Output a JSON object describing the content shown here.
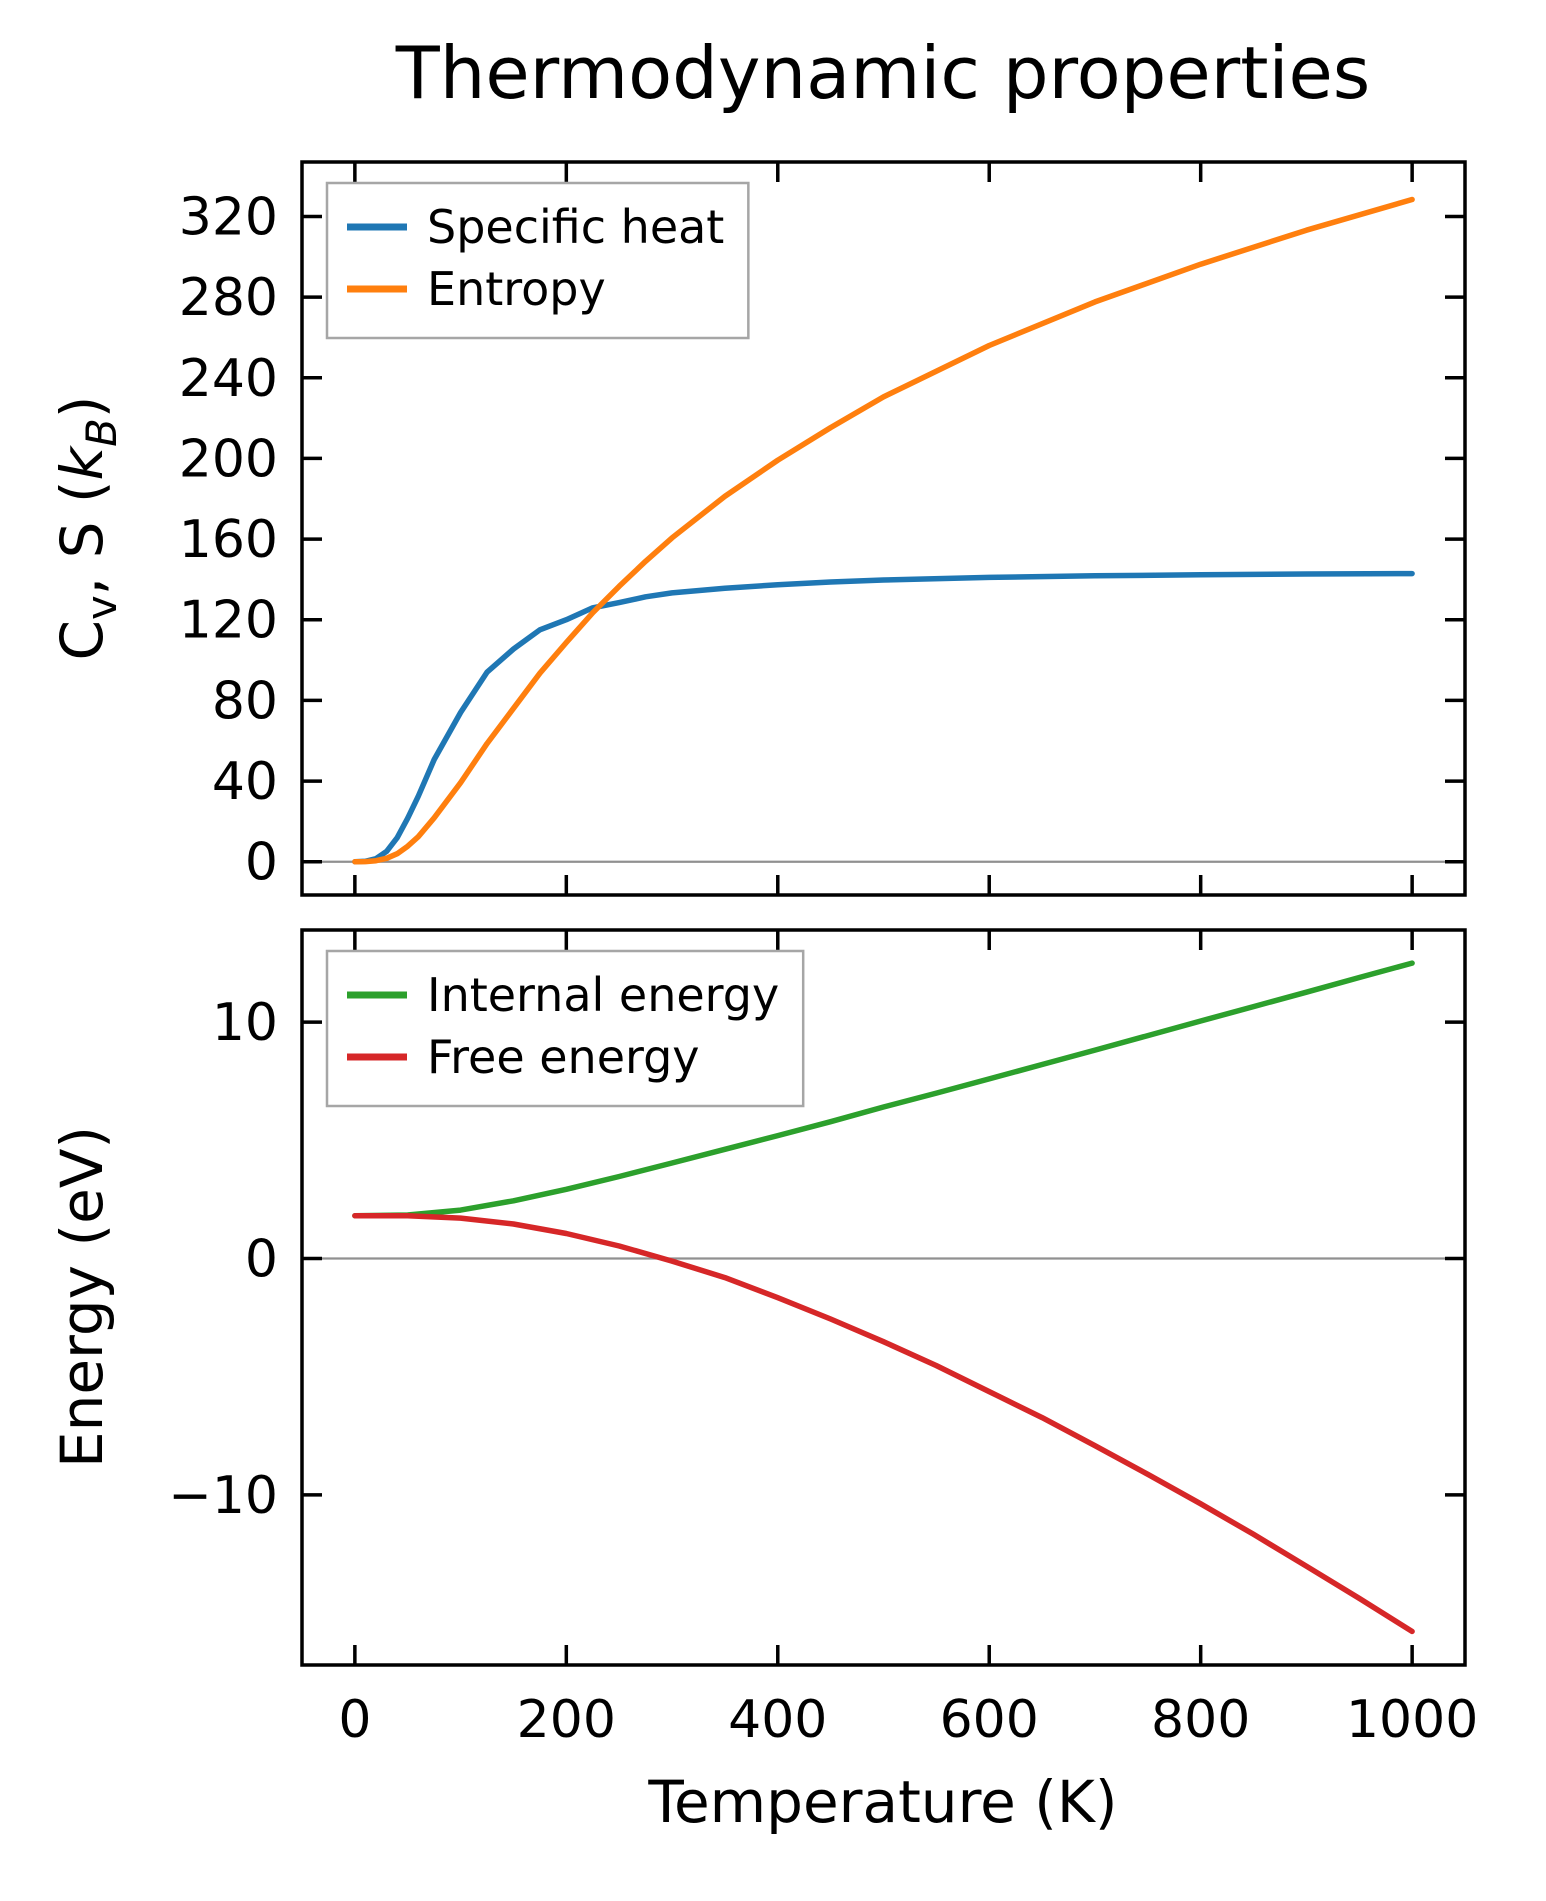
{
  "title": "Thermodynamic properties",
  "colors": {
    "specific_heat": "#1f77b4",
    "entropy": "#ff7f0e",
    "internal_energy": "#2ca02c",
    "free_energy": "#d62728",
    "zero_line": "#909090",
    "legend_border": "#a6a6a6",
    "frame": "#000000"
  },
  "chart_data": [
    {
      "type": "line",
      "title": "Thermodynamic properties",
      "xlabel": "",
      "ylabel_rich": [
        {
          "t": "C"
        },
        {
          "t": "v",
          "sub": true
        },
        {
          "t": ", S ("
        },
        {
          "t": "k",
          "i": true
        },
        {
          "t": "B",
          "sub": true,
          "i": true
        },
        {
          "t": ")"
        }
      ],
      "xlim": [
        -50,
        1050
      ],
      "ylim": [
        -16.5,
        347
      ],
      "xticks": [
        0,
        200,
        400,
        600,
        800,
        1000
      ],
      "yticks": [
        0,
        40,
        80,
        120,
        160,
        200,
        240,
        280,
        320
      ],
      "ytick_labels": [
        "0",
        "40",
        "80",
        "120",
        "160",
        "200",
        "240",
        "280",
        "320"
      ],
      "grid": false,
      "zero_line": 0,
      "legend_loc": "upper left",
      "series": [
        {
          "name": "Specific heat",
          "color": "#1f77b4",
          "x": [
            0,
            10,
            20,
            30,
            40,
            50,
            60,
            75,
            100,
            125,
            150,
            175,
            200,
            225,
            250,
            275,
            300,
            350,
            400,
            450,
            500,
            600,
            700,
            800,
            900,
            1000
          ],
          "y": [
            0,
            0.2,
            1.5,
            5.1,
            11.9,
            21.6,
            32.5,
            50.7,
            74.0,
            94.0,
            105.5,
            115.0,
            120.0,
            125.9,
            128.5,
            131.4,
            133.3,
            135.6,
            137.4,
            138.7,
            139.7,
            141.0,
            141.8,
            142.3,
            142.7,
            142.9
          ]
        },
        {
          "name": "Entropy",
          "color": "#ff7f0e",
          "x": [
            0,
            10,
            20,
            30,
            40,
            50,
            60,
            75,
            100,
            125,
            150,
            175,
            200,
            225,
            250,
            275,
            300,
            350,
            400,
            450,
            500,
            600,
            700,
            800,
            900,
            1000
          ],
          "y": [
            0,
            0.06,
            0.5,
            1.7,
            4.0,
            7.7,
            12.4,
            21.8,
            39.2,
            58.6,
            76.1,
            93.5,
            108.7,
            123.5,
            136.6,
            149.0,
            160.6,
            181.2,
            199.1,
            215.3,
            230.5,
            256.0,
            277.6,
            296.3,
            313.2,
            328.4
          ]
        }
      ]
    },
    {
      "type": "line",
      "xlabel": "Temperature (K)",
      "ylabel": "Energy (eV)",
      "xlim": [
        -50,
        1050
      ],
      "ylim": [
        -17.2,
        13.9
      ],
      "xticks": [
        0,
        200,
        400,
        600,
        800,
        1000
      ],
      "xtick_labels": [
        "0",
        "200",
        "400",
        "600",
        "800",
        "1000"
      ],
      "yticks": [
        -10,
        0,
        10
      ],
      "ytick_labels": [
        "−10",
        "0",
        "10"
      ],
      "grid": false,
      "zero_line": 0,
      "legend_loc": "upper left",
      "series": [
        {
          "name": "Internal energy",
          "color": "#2ca02c",
          "x": [
            0,
            50,
            100,
            150,
            200,
            250,
            300,
            350,
            400,
            450,
            500,
            550,
            600,
            650,
            700,
            750,
            800,
            850,
            900,
            950,
            1000
          ],
          "y": [
            1.81,
            1.84,
            2.05,
            2.44,
            2.93,
            3.47,
            4.04,
            4.62,
            5.2,
            5.79,
            6.41,
            7.0,
            7.6,
            8.21,
            8.82,
            9.43,
            10.05,
            10.66,
            11.27,
            11.89,
            12.5
          ]
        },
        {
          "name": "Free energy",
          "color": "#d62728",
          "x": [
            0,
            50,
            100,
            150,
            200,
            250,
            300,
            350,
            400,
            450,
            500,
            550,
            600,
            650,
            700,
            750,
            800,
            850,
            900,
            950,
            1000
          ],
          "y": [
            1.81,
            1.81,
            1.71,
            1.46,
            1.06,
            0.53,
            -0.11,
            -0.81,
            -1.66,
            -2.56,
            -3.52,
            -4.53,
            -5.63,
            -6.73,
            -7.92,
            -9.13,
            -10.38,
            -11.67,
            -13.02,
            -14.38,
            -15.78
          ]
        }
      ]
    }
  ]
}
